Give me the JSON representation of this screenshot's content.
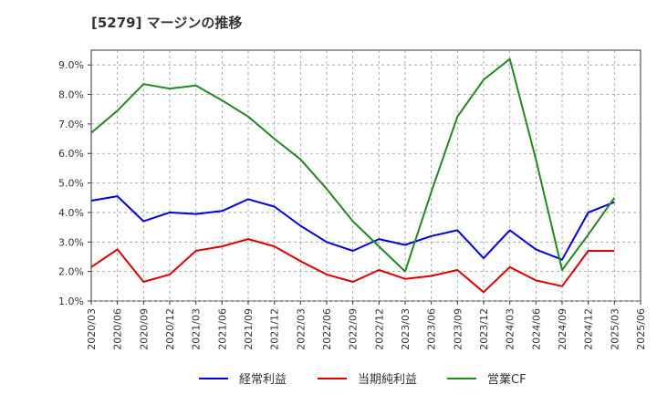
{
  "chart_data": {
    "type": "line",
    "title": "[5279]  マージンの推移",
    "xlabel": "",
    "ylabel": "",
    "ylim": [
      1.0,
      9.5
    ],
    "yticks": [
      "1.0%",
      "2.0%",
      "3.0%",
      "4.0%",
      "5.0%",
      "6.0%",
      "7.0%",
      "8.0%",
      "9.0%"
    ],
    "ytick_values": [
      1,
      2,
      3,
      4,
      5,
      6,
      7,
      8,
      9
    ],
    "categories": [
      "2020/03",
      "2020/06",
      "2020/09",
      "2020/12",
      "2021/03",
      "2021/06",
      "2021/09",
      "2021/12",
      "2022/03",
      "2022/06",
      "2022/09",
      "2022/12",
      "2023/03",
      "2023/06",
      "2023/09",
      "2023/12",
      "2024/03",
      "2024/06",
      "2024/09",
      "2024/12",
      "2025/03",
      "2025/06"
    ],
    "grid": true,
    "grid_style": "dashed",
    "legend_position": "bottom",
    "series": [
      {
        "name": "経常利益",
        "color": "#0000dd",
        "values": [
          4.4,
          4.55,
          3.7,
          4.0,
          3.95,
          4.05,
          4.45,
          4.2,
          3.55,
          3.0,
          2.7,
          3.1,
          2.9,
          3.2,
          3.4,
          2.45,
          3.4,
          2.75,
          2.4,
          4.0,
          4.35,
          null
        ]
      },
      {
        "name": "当期純利益",
        "color": "#dd0000",
        "values": [
          2.15,
          2.75,
          1.65,
          1.9,
          2.7,
          2.85,
          3.1,
          2.85,
          2.35,
          1.9,
          1.65,
          2.05,
          1.75,
          1.85,
          2.05,
          1.3,
          2.15,
          1.7,
          1.5,
          2.7,
          2.7,
          null
        ]
      },
      {
        "name": "営業CF",
        "color": "#228822",
        "values": [
          6.7,
          7.45,
          8.35,
          8.2,
          8.3,
          7.8,
          7.25,
          6.5,
          5.8,
          4.8,
          3.7,
          2.85,
          2.0,
          4.7,
          7.25,
          8.5,
          9.2,
          5.8,
          2.05,
          3.25,
          4.5,
          null
        ]
      }
    ]
  }
}
